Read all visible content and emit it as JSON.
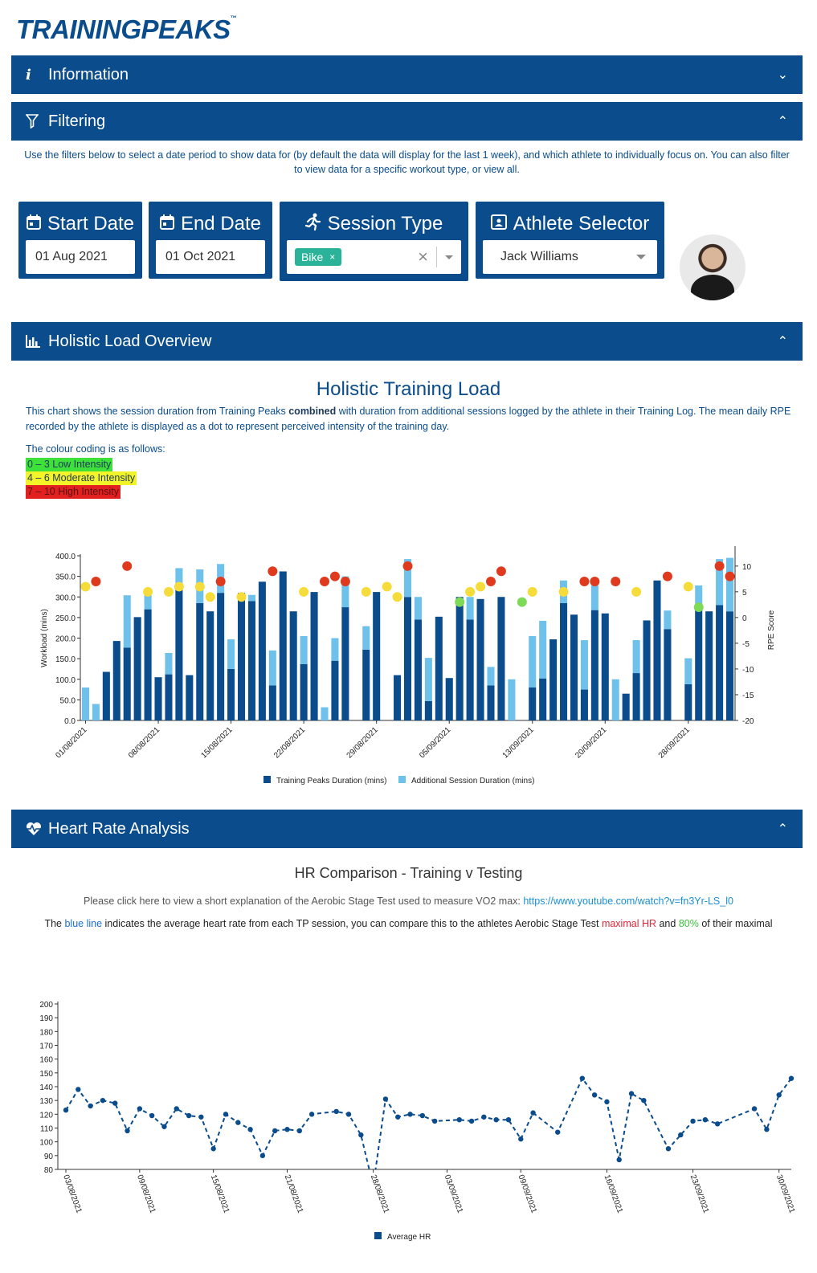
{
  "logo": {
    "text": "TRAININGPEAKS",
    "tm": "™"
  },
  "panels": {
    "information": "Information",
    "filtering": "Filtering",
    "holistic": "Holistic Load Overview",
    "heart_rate": "Heart Rate Analysis"
  },
  "filter_description": "Use the filters below to select a date period to show data for (by default the data will display for the last 1 week), and which athlete to individually focus on. You can also filter to view data for a specific workout type, or view all.",
  "filters": {
    "start_date": {
      "label": "Start Date",
      "value": "01 Aug 2021"
    },
    "end_date": {
      "label": "End Date",
      "value": "01 Oct 2021"
    },
    "session_type": {
      "label": "Session Type",
      "chip": "Bike",
      "chip_remove": "×",
      "clear": "×"
    },
    "athlete": {
      "label": "Athlete Selector",
      "value": "Jack Williams"
    }
  },
  "holistic": {
    "title": "Holistic Training Load",
    "desc_before": "This chart shows the session duration from Training Peaks ",
    "desc_bold": "combined",
    "desc_after": " with duration from additional sessions logged by the athlete in their Training Log. The mean daily RPE recorded by the athlete is displayed as a dot to represent perceived intensity of the training day.",
    "colour_intro": "The colour coding is as follows:",
    "legend_low": "0 – 3 Low Intensity",
    "legend_mod": "4 – 6 Moderate Intensity",
    "legend_high": "7 – 10 High Intensity"
  },
  "hr": {
    "title": "HR Comparison - Training v Testing",
    "link_prefix": "Please click here to view a short explanation of the Aerobic Stage Test used to measure VO2 max: ",
    "link_url": "https://www.youtube.com/watch?v=fn3Yr-LS_l0",
    "note_1": "The ",
    "note_blue": "blue line",
    "note_2": " indicates the average heart rate from each TP session, you can compare this to the athletes Aerobic Stage Test ",
    "note_red": "maximal HR",
    "note_3": " and ",
    "note_green": "80%",
    "note_4": " of their maximal"
  },
  "colors": {
    "brand": "#0a4c8c",
    "tp_bar": "#0a4c8c",
    "additional_bar": "#6ec1ea",
    "low": "#7ed957",
    "moderate": "#f5dc3a",
    "high": "#e03a1e",
    "hr_line": "#0a4c8c"
  },
  "chart_data": [
    {
      "type": "bar",
      "title": "",
      "xlabel": "",
      "ylabel": "Workload (mins)",
      "y2label": "RPE Score",
      "ylim": [
        0,
        400
      ],
      "y2lim": [
        -20,
        12
      ],
      "yticks": [
        "0.0",
        "50.0",
        "100.0",
        "150.0",
        "200.0",
        "250.0",
        "300.0",
        "350.0",
        "400.0"
      ],
      "y2ticks": [
        "-20",
        "-15",
        "-10",
        "-5",
        "0",
        "5",
        "10"
      ],
      "x_tick_labels": [
        "01/08/2021",
        "08/08/2021",
        "15/08/2021",
        "22/08/2021",
        "29/08/2021",
        "05/09/2021",
        "13/09/2021",
        "20/09/2021",
        "28/09/2021"
      ],
      "x_tick_index": [
        0,
        7,
        14,
        21,
        28,
        35,
        43,
        50,
        58
      ],
      "legend": [
        "Training Peaks Duration (mins)",
        "Additional Session Duration (mins)"
      ],
      "legend_position": "bottom",
      "stacked": true,
      "series": [
        {
          "name": "Training Peaks Duration (mins)",
          "values": [
            0,
            0,
            118,
            193,
            177,
            251,
            270,
            105,
            112,
            320,
            110,
            285,
            265,
            310,
            125,
            310,
            290,
            337,
            85,
            362,
            265,
            137,
            312,
            0,
            145,
            275,
            0,
            172,
            312,
            0,
            110,
            300,
            245,
            47,
            252,
            103,
            300,
            245,
            295,
            85,
            300,
            0,
            0,
            80,
            102,
            197,
            285,
            257,
            75,
            268,
            260,
            0,
            65,
            115,
            243,
            340,
            222,
            0,
            88,
            280,
            265,
            280,
            265
          ]
        },
        {
          "name": "Additional Session Duration (mins)",
          "values": [
            80,
            40,
            0,
            0,
            127,
            0,
            35,
            0,
            52,
            50,
            0,
            82,
            0,
            70,
            72,
            0,
            15,
            0,
            85,
            0,
            0,
            68,
            0,
            32,
            55,
            75,
            0,
            57,
            0,
            0,
            0,
            92,
            55,
            105,
            0,
            0,
            0,
            55,
            0,
            45,
            0,
            100,
            0,
            125,
            140,
            0,
            55,
            0,
            120,
            60,
            0,
            100,
            0,
            80,
            0,
            0,
            45,
            0,
            63,
            48,
            0,
            112,
            130
          ]
        },
        {
          "name": "RPE",
          "values": [
            6,
            7,
            null,
            null,
            10,
            null,
            5,
            null,
            5,
            6,
            null,
            6,
            4,
            7,
            null,
            4,
            null,
            null,
            9,
            null,
            null,
            5,
            null,
            7,
            8,
            7,
            null,
            5,
            null,
            6,
            4,
            10,
            null,
            null,
            null,
            null,
            3,
            5,
            6,
            7,
            9,
            null,
            3,
            5,
            null,
            null,
            5,
            null,
            7,
            7,
            null,
            7,
            null,
            5,
            null,
            null,
            8,
            null,
            6,
            2,
            null,
            10,
            8
          ]
        }
      ]
    },
    {
      "type": "line",
      "title": "HR Comparison - Training v Testing",
      "xlabel": "",
      "ylabel": "",
      "ylim": [
        80,
        200
      ],
      "yticks": [
        80,
        90,
        100,
        110,
        120,
        130,
        140,
        150,
        160,
        170,
        180,
        190,
        200
      ],
      "x_tick_labels": [
        "03/08/2021",
        "09/08/2021",
        "15/08/2021",
        "21/08/2021",
        "28/08/2021",
        "03/09/2021",
        "09/09/2021",
        "16/09/2021",
        "23/09/2021",
        "30/09/2021"
      ],
      "x_tick_index": [
        0,
        6,
        12,
        18,
        25,
        31,
        37,
        44,
        51,
        58
      ],
      "legend": [
        "Average HR"
      ],
      "legend_position": "bottom",
      "series": [
        {
          "name": "Average HR",
          "values": [
            123,
            138,
            126,
            130,
            128,
            108,
            124,
            119,
            111,
            124,
            119,
            118,
            95,
            120,
            114,
            109,
            90,
            108,
            109,
            108,
            120,
            null,
            122,
            120,
            105,
            68,
            131,
            118,
            120,
            119,
            115,
            null,
            116,
            115,
            118,
            116,
            116,
            102,
            121,
            null,
            107,
            null,
            146,
            134,
            129,
            87,
            135,
            130,
            null,
            95,
            105,
            115,
            116,
            113,
            null,
            null,
            124,
            109,
            134,
            146
          ]
        }
      ]
    }
  ]
}
